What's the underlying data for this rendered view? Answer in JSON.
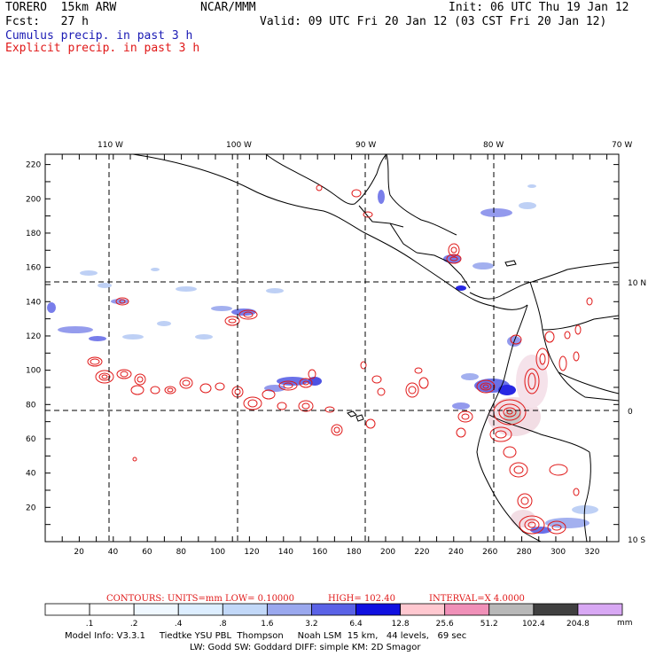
{
  "header": {
    "title": "TORERO  15km ARW",
    "org": "NCAR/MMM",
    "init": "Init: 06 UTC Thu 19 Jan 12",
    "fcst": "Fcst:   27 h",
    "valid": "Valid: 09 UTC Fri 20 Jan 12 (03 CST Fri 20 Jan 12)",
    "cumulus_label": "Cumulus precip. in past 3 h",
    "explicit_label": "Explicit precip. in past 3 h"
  },
  "map": {
    "lon_labels": [
      "110 W",
      "100 W",
      "90 W",
      "80 W",
      "70 W"
    ],
    "lat_labels": [
      "10 N",
      "0",
      "10 S"
    ],
    "x_ticks": [
      "20",
      "40",
      "60",
      "80",
      "100",
      "120",
      "140",
      "160",
      "180",
      "200",
      "220",
      "240",
      "260",
      "280",
      "300",
      "320"
    ],
    "y_ticks": [
      "20",
      "40",
      "60",
      "80",
      "100",
      "120",
      "140",
      "160",
      "180",
      "200",
      "220"
    ]
  },
  "contours_line": {
    "label": "CONTOURS:  UNITS=mm  LOW= 0.10000",
    "high": "HIGH=  102.40",
    "interval": "INTERVAL=X  4.0000"
  },
  "colorbar": {
    "labels": [
      ".1",
      ".2",
      ".4",
      ".8",
      "1.6",
      "3.2",
      "6.4",
      "12.8",
      "25.6",
      "51.2",
      "102.4",
      "204.8"
    ],
    "unit": "mm",
    "colors": [
      "#ffffff",
      "#ffffff",
      "#f0f8ff",
      "#ddeeff",
      "#c2d8f8",
      "#9aa8ee",
      "#5a62e6",
      "#1010e0",
      "#ffc8d0",
      "#f090b8",
      "#b8b8b8",
      "#404040",
      "#d8a8f4"
    ]
  },
  "model_info": {
    "line1": "Model Info: V3.3.1     Tiedtke YSU PBL  Thompson     Noah LSM  15 km,   44 levels,   69 sec",
    "line2": "LW: Godd SW: Goddard DIFF: simple KM: 2D Smagor"
  }
}
